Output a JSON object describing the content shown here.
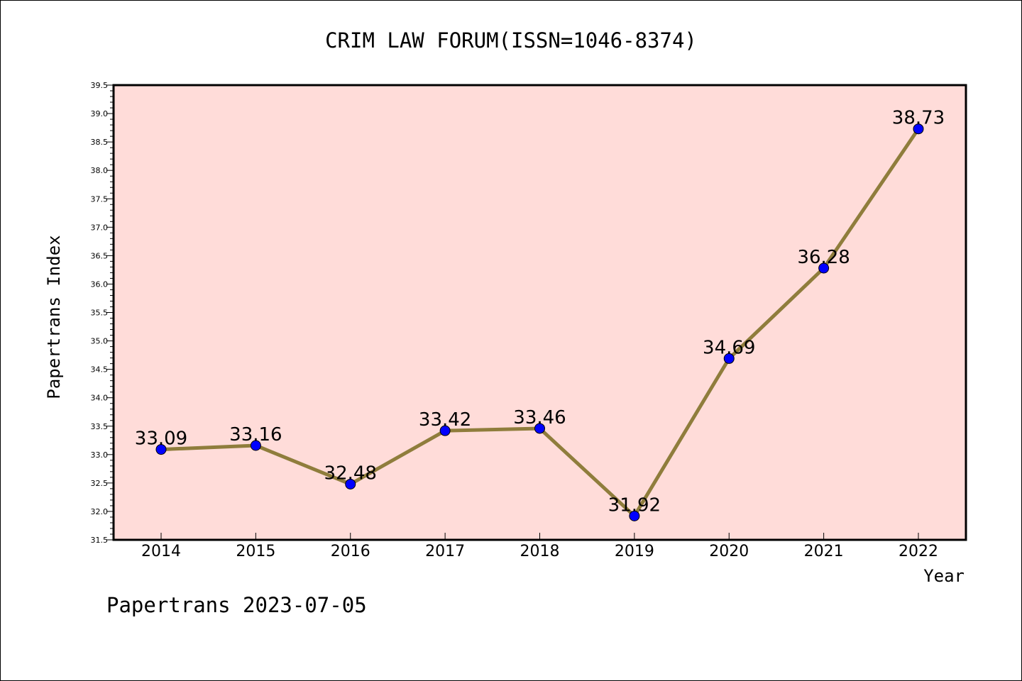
{
  "chart_data": {
    "type": "line",
    "title": "CRIM LAW FORUM(ISSN=1046-8374)",
    "xlabel": "Year",
    "ylabel": "Papertrans Index",
    "categories": [
      "2014",
      "2015",
      "2016",
      "2017",
      "2018",
      "2019",
      "2020",
      "2021",
      "2022"
    ],
    "values": [
      33.09,
      33.16,
      32.48,
      33.42,
      33.46,
      31.92,
      34.69,
      36.28,
      38.73
    ],
    "data_labels": [
      "33.09",
      "33.16",
      "32.48",
      "33.42",
      "33.46",
      "31.92",
      "34.69",
      "36.28",
      "38.73"
    ],
    "ylim": [
      31.5,
      39.5
    ],
    "yticks": [
      "31.5",
      "32.0",
      "32.5",
      "33.0",
      "33.5",
      "34.0",
      "34.5",
      "35.0",
      "35.5",
      "36.0",
      "36.5",
      "37.0",
      "37.5",
      "38.0",
      "38.5",
      "39.0",
      "39.5"
    ],
    "grid": false,
    "legend": "none",
    "colors": {
      "plot_background": "#ffdcd9",
      "line": "#8f7d3c",
      "marker": "#0000ff"
    }
  },
  "footer": {
    "text": "Papertrans 2023-07-05"
  }
}
